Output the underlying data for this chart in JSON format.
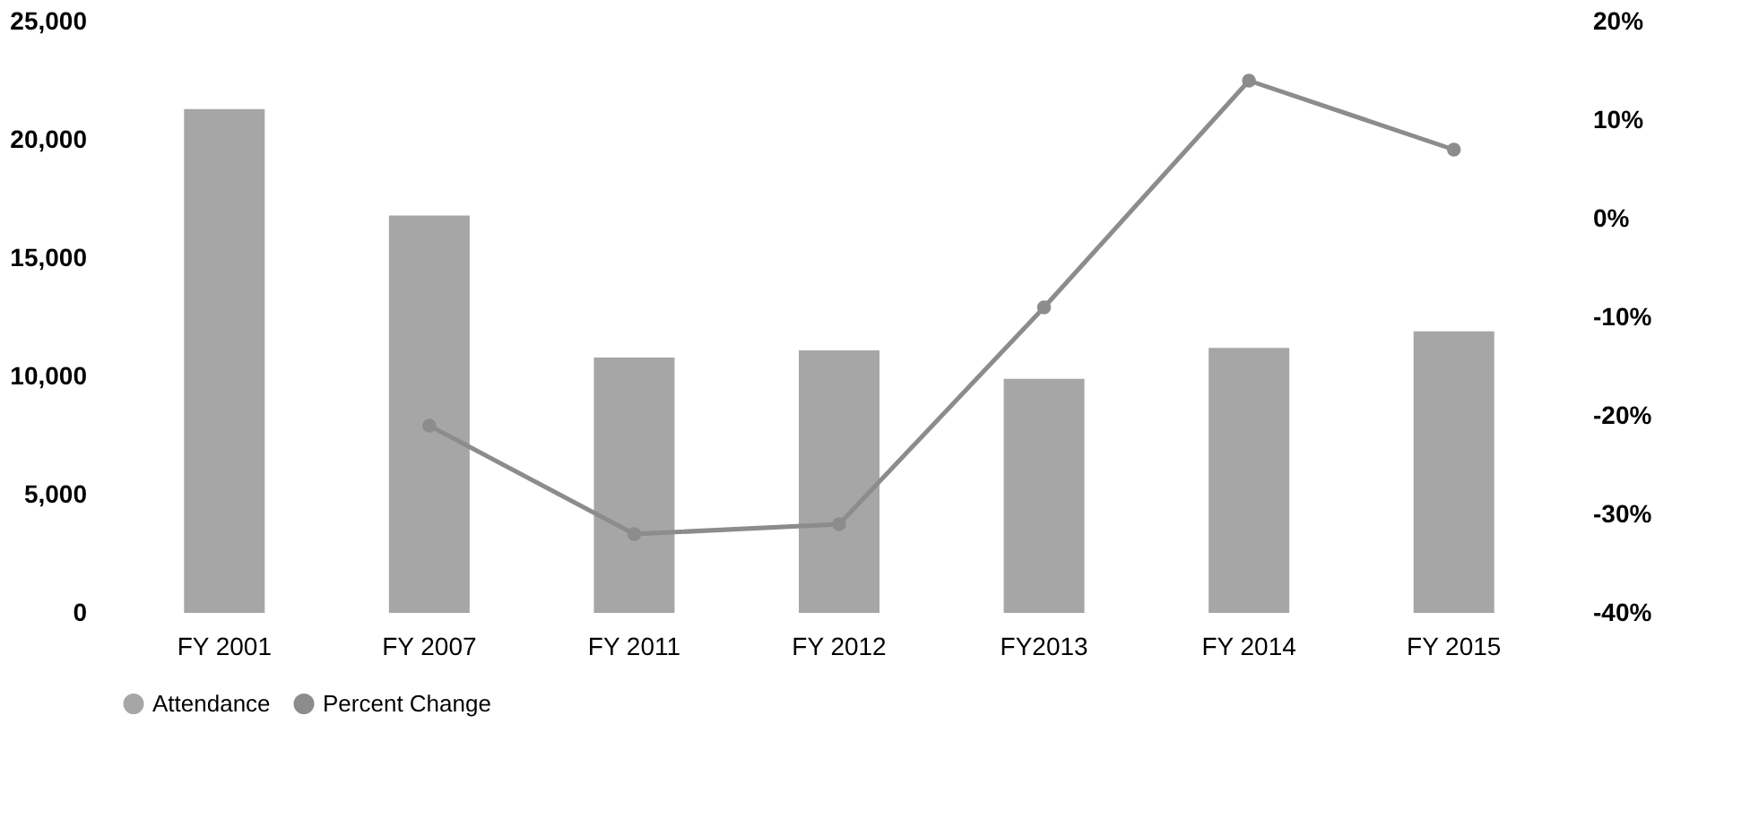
{
  "chart_data": {
    "type": "bar",
    "categories": [
      "FY 2001",
      "FY 2007",
      "FY 2011",
      "FY 2012",
      "FY2013",
      "FY 2014",
      "FY 2015"
    ],
    "series": [
      {
        "name": "Attendance",
        "color": "#a6a6a6",
        "values": [
          21300,
          16800,
          10800,
          11100,
          9900,
          11200,
          11900
        ]
      },
      {
        "name": "Percent Change",
        "type": "line",
        "axis": "y2",
        "color": "#8c8c8c",
        "values": [
          null,
          -21,
          -32,
          -31,
          -9,
          14,
          7
        ]
      }
    ],
    "ylim": [
      0,
      25000
    ],
    "yticks": [
      {
        "value": 0,
        "label": "0"
      },
      {
        "value": 5000,
        "label": "5,000"
      },
      {
        "value": 10000,
        "label": "10,000"
      },
      {
        "value": 15000,
        "label": "15,000"
      },
      {
        "value": 20000,
        "label": "20,000"
      },
      {
        "value": 25000,
        "label": "25,000"
      }
    ],
    "y2lim": [
      -40,
      20
    ],
    "y2ticks": [
      {
        "value": -40,
        "label": "-40%"
      },
      {
        "value": -30,
        "label": "-30%"
      },
      {
        "value": -20,
        "label": "-20%"
      },
      {
        "value": -10,
        "label": "-10%"
      },
      {
        "value": 0,
        "label": "0%"
      },
      {
        "value": 10,
        "label": "10%"
      },
      {
        "value": 20,
        "label": "20%"
      }
    ],
    "legend": "bottom",
    "grid": false,
    "marker": "circle",
    "line_style": "solid"
  }
}
